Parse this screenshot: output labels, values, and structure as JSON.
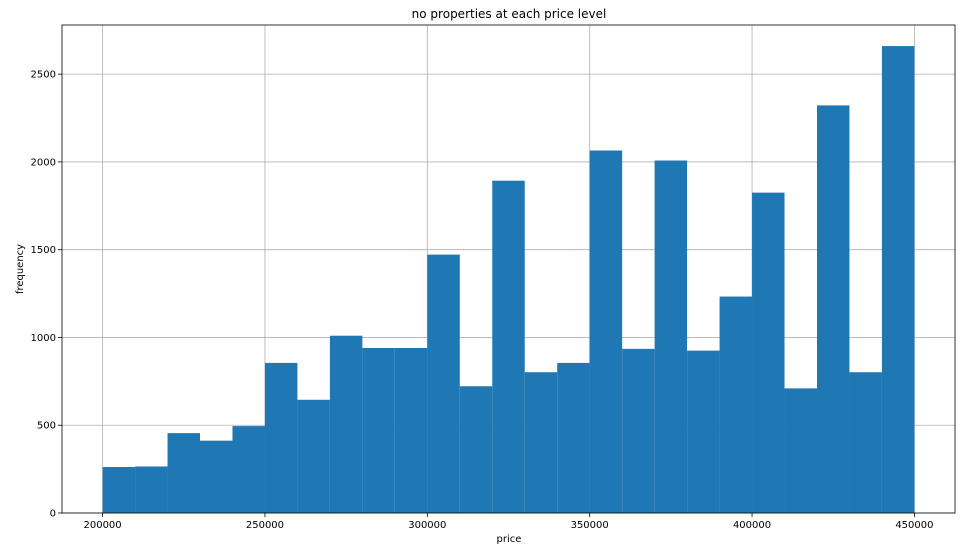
{
  "chart_data": {
    "type": "bar",
    "title": "no properties at each price level",
    "xlabel": "price",
    "ylabel": "frequency",
    "xlim": [
      187500,
      462500
    ],
    "ylim": [
      0,
      2780
    ],
    "grid": true,
    "bar_color": "#1f77b4",
    "bin_width": 10000,
    "bins_start": [
      200000,
      210000,
      220000,
      230000,
      240000,
      250000,
      260000,
      270000,
      280000,
      290000,
      300000,
      310000,
      320000,
      330000,
      340000,
      350000,
      360000,
      370000,
      380000,
      390000,
      400000,
      410000,
      420000,
      430000,
      440000
    ],
    "values": [
      262,
      265,
      455,
      412,
      495,
      855,
      645,
      1010,
      940,
      940,
      1472,
      722,
      1893,
      802,
      855,
      2065,
      935,
      2008,
      925,
      1233,
      1825,
      710,
      2322,
      802,
      2660
    ],
    "xticks": [
      200000,
      250000,
      300000,
      350000,
      400000,
      450000
    ],
    "xtick_labels": [
      "200000",
      "250000",
      "300000",
      "350000",
      "400000",
      "450000"
    ],
    "yticks": [
      0,
      500,
      1000,
      1500,
      2000,
      2500
    ],
    "ytick_labels": [
      "0",
      "500",
      "1000",
      "1500",
      "2000",
      "2500"
    ]
  }
}
